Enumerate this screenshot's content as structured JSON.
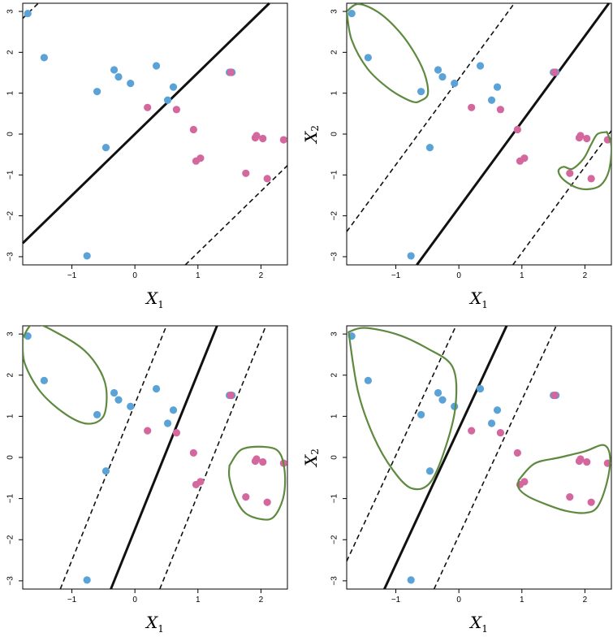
{
  "figure": {
    "colors": {
      "blue": "#5ba3d6",
      "pink": "#d3679e",
      "loop": "#5d8a3f",
      "line": "#111111"
    }
  },
  "chart_data": [
    {
      "type": "scatter",
      "title": "",
      "xlabel": "X1",
      "ylabel": "",
      "xlim": [
        -1.78,
        2.42
      ],
      "ylim": [
        -3.2,
        3.2
      ],
      "xticks": [
        -1,
        0,
        1,
        2
      ],
      "yticks": [
        -3,
        -2,
        -1,
        0,
        1,
        2,
        3
      ],
      "xtick_labels": [
        "−1",
        "0",
        "1",
        "2"
      ],
      "ytick_labels": [
        "−3",
        "−2",
        "−1",
        "0",
        "1",
        "2",
        "3"
      ],
      "series": [
        {
          "name": "blue",
          "x": [
            -1.7,
            -1.44,
            -0.6,
            -0.46,
            -0.33,
            -0.26,
            -0.07,
            0.34,
            0.52,
            0.61,
            1.5,
            1.54,
            -0.76
          ],
          "y": [
            2.95,
            1.87,
            1.04,
            -0.33,
            1.57,
            1.4,
            1.24,
            1.67,
            0.83,
            1.15,
            1.51,
            1.51,
            -2.98
          ]
        },
        {
          "name": "pink",
          "x": [
            0.2,
            0.66,
            0.93,
            0.97,
            1.04,
            1.76,
            1.91,
            1.93,
            2.03,
            2.1,
            2.36,
            1.52
          ],
          "y": [
            0.65,
            0.6,
            0.11,
            -0.66,
            -0.59,
            -0.96,
            -0.09,
            -0.04,
            -0.11,
            -1.09,
            -0.14,
            1.51
          ]
        }
      ],
      "lines": [
        {
          "style": "solid",
          "slope": 1.5,
          "intercept": 0.0
        },
        {
          "style": "dashed",
          "slope": 1.5,
          "intercept": 5.5
        },
        {
          "style": "dashed",
          "slope": 1.5,
          "intercept": -4.4
        }
      ],
      "loops": []
    },
    {
      "type": "scatter",
      "title": "",
      "xlabel": "X1",
      "ylabel": "X2",
      "xlim": [
        -1.78,
        2.42
      ],
      "ylim": [
        -3.2,
        3.2
      ],
      "xticks": [
        -1,
        0,
        1,
        2
      ],
      "yticks": [
        -3,
        -2,
        -1,
        0,
        1,
        2,
        3
      ],
      "xtick_labels": [
        "−1",
        "0",
        "1",
        "2"
      ],
      "ytick_labels": [
        "−3",
        "−2",
        "−1",
        "0",
        "1",
        "2",
        "3"
      ],
      "series": [
        {
          "name": "blue",
          "x": [
            -1.7,
            -1.44,
            -0.6,
            -0.46,
            -0.33,
            -0.26,
            -0.07,
            0.34,
            0.52,
            0.61,
            1.5,
            1.54,
            -0.76
          ],
          "y": [
            2.95,
            1.87,
            1.04,
            -0.33,
            1.57,
            1.4,
            1.24,
            1.67,
            0.83,
            1.15,
            1.51,
            1.51,
            -2.98
          ]
        },
        {
          "name": "pink",
          "x": [
            0.2,
            0.66,
            0.93,
            0.97,
            1.04,
            1.76,
            1.91,
            1.93,
            2.03,
            2.1,
            2.36,
            1.52
          ],
          "y": [
            0.65,
            0.6,
            0.11,
            -0.66,
            -0.59,
            -0.96,
            -0.09,
            -0.04,
            -0.11,
            -1.09,
            -0.14,
            1.51
          ]
        }
      ],
      "lines": [
        {
          "style": "solid",
          "slope": 2.1,
          "intercept": -1.8
        },
        {
          "style": "dashed",
          "slope": 2.1,
          "intercept": 1.35
        },
        {
          "style": "dashed",
          "slope": 2.1,
          "intercept": -5.0
        }
      ],
      "loops": [
        {
          "x": [
            -1.78,
            -1.6,
            -1.3,
            -1.0,
            -0.75,
            -0.55,
            -0.49,
            -0.6,
            -0.75,
            -1.1,
            -1.45,
            -1.7,
            -1.78
          ],
          "y": [
            3.0,
            3.18,
            3.0,
            2.6,
            2.1,
            1.5,
            1.0,
            0.82,
            0.8,
            1.1,
            1.6,
            2.3,
            3.0
          ]
        },
        {
          "x": [
            2.35,
            2.42,
            2.38,
            2.25,
            2.05,
            1.85,
            1.65,
            1.58,
            1.66,
            1.8,
            1.98,
            2.1,
            2.2,
            2.35
          ],
          "y": [
            0.05,
            -0.3,
            -0.9,
            -1.25,
            -1.35,
            -1.3,
            -1.1,
            -0.9,
            -0.8,
            -0.85,
            -0.6,
            -0.25,
            0.0,
            0.05
          ]
        }
      ]
    },
    {
      "type": "scatter",
      "title": "",
      "xlabel": "X1",
      "ylabel": "",
      "xlim": [
        -1.78,
        2.42
      ],
      "ylim": [
        -3.2,
        3.2
      ],
      "xticks": [
        -1,
        0,
        1,
        2
      ],
      "yticks": [
        -3,
        -2,
        -1,
        0,
        1,
        2,
        3
      ],
      "xtick_labels": [
        "−1",
        "0",
        "1",
        "2"
      ],
      "ytick_labels": [
        "−3",
        "−2",
        "−1",
        "0",
        "1",
        "2",
        "3"
      ],
      "series": [
        {
          "name": "blue",
          "x": [
            -1.7,
            -1.44,
            -0.6,
            -0.46,
            -0.33,
            -0.26,
            -0.07,
            0.34,
            0.52,
            0.61,
            1.5,
            1.54,
            -0.76
          ],
          "y": [
            2.95,
            1.87,
            1.04,
            -0.33,
            1.57,
            1.4,
            1.24,
            1.67,
            0.83,
            1.15,
            1.51,
            1.51,
            -2.98
          ]
        },
        {
          "name": "pink",
          "x": [
            0.2,
            0.66,
            0.93,
            0.97,
            1.04,
            1.76,
            1.91,
            1.93,
            2.03,
            2.1,
            2.36,
            1.52
          ],
          "y": [
            0.65,
            0.6,
            0.11,
            -0.66,
            -0.59,
            -0.96,
            -0.09,
            -0.04,
            -0.11,
            -1.09,
            -0.14,
            1.51
          ]
        }
      ],
      "lines": [
        {
          "style": "solid",
          "slope": 3.8,
          "intercept": -1.75
        },
        {
          "style": "dashed",
          "slope": 3.8,
          "intercept": 1.3
        },
        {
          "style": "dashed",
          "slope": 3.8,
          "intercept": -4.7
        }
      ],
      "loops": [
        {
          "x": [
            -1.78,
            -1.6,
            -1.2,
            -0.8,
            -0.55,
            -0.45,
            -0.5,
            -0.75,
            -1.1,
            -1.5,
            -1.75,
            -1.78
          ],
          "y": [
            2.9,
            3.25,
            3.0,
            2.6,
            2.1,
            1.6,
            1.0,
            0.82,
            1.05,
            1.6,
            2.3,
            2.9
          ]
        },
        {
          "x": [
            1.5,
            1.7,
            2.1,
            2.3,
            2.38,
            2.35,
            2.2,
            2.0,
            1.75,
            1.6,
            1.5,
            1.5
          ],
          "y": [
            -0.2,
            0.2,
            0.25,
            0.1,
            -0.4,
            -1.0,
            -1.45,
            -1.5,
            -1.35,
            -1.0,
            -0.5,
            -0.2
          ]
        }
      ]
    },
    {
      "type": "scatter",
      "title": "",
      "xlabel": "X1",
      "ylabel": "X2",
      "xlim": [
        -1.78,
        2.42
      ],
      "ylim": [
        -3.2,
        3.2
      ],
      "xticks": [
        -1,
        0,
        1,
        2
      ],
      "yticks": [
        -3,
        -2,
        -1,
        0,
        1,
        2,
        3
      ],
      "xtick_labels": [
        "−1",
        "0",
        "1",
        "2"
      ],
      "ytick_labels": [
        "−3",
        "−2",
        "−1",
        "0",
        "1",
        "2",
        "3"
      ],
      "series": [
        {
          "name": "blue",
          "x": [
            -1.7,
            -1.44,
            -0.6,
            -0.46,
            -0.33,
            -0.26,
            -0.07,
            0.34,
            0.52,
            0.61,
            1.5,
            1.54,
            -0.76
          ],
          "y": [
            2.95,
            1.87,
            1.04,
            -0.33,
            1.57,
            1.4,
            1.24,
            1.67,
            0.83,
            1.15,
            1.51,
            1.51,
            -2.98
          ]
        },
        {
          "name": "pink",
          "x": [
            0.2,
            0.66,
            0.93,
            0.97,
            1.04,
            1.76,
            1.91,
            1.93,
            2.03,
            2.1,
            2.36,
            1.52
          ],
          "y": [
            0.65,
            0.6,
            0.11,
            -0.66,
            -0.59,
            -0.96,
            -0.09,
            -0.04,
            -0.11,
            -1.09,
            -0.14,
            1.51
          ]
        }
      ],
      "lines": [
        {
          "style": "solid",
          "slope": 3.3,
          "intercept": 0.7
        },
        {
          "style": "dashed",
          "slope": 3.3,
          "intercept": 3.35
        },
        {
          "style": "dashed",
          "slope": 3.3,
          "intercept": -1.9
        }
      ],
      "loops": [
        {
          "x": [
            -1.75,
            -1.5,
            -1.0,
            -0.5,
            -0.1,
            -0.05,
            -0.2,
            -0.45,
            -0.75,
            -1.05,
            -1.35,
            -1.6,
            -1.75
          ],
          "y": [
            3.05,
            3.15,
            3.0,
            2.65,
            2.2,
            1.3,
            0.3,
            -0.6,
            -0.75,
            -0.3,
            0.5,
            1.6,
            3.05
          ]
        },
        {
          "x": [
            0.95,
            1.2,
            1.6,
            2.0,
            2.3,
            2.4,
            2.35,
            2.2,
            2.0,
            1.7,
            1.4,
            1.1,
            0.95,
            0.95
          ],
          "y": [
            -0.55,
            -0.15,
            0.0,
            0.15,
            0.3,
            0.0,
            -0.6,
            -1.2,
            -1.35,
            -1.3,
            -1.15,
            -0.95,
            -0.75,
            -0.55
          ]
        }
      ]
    }
  ]
}
